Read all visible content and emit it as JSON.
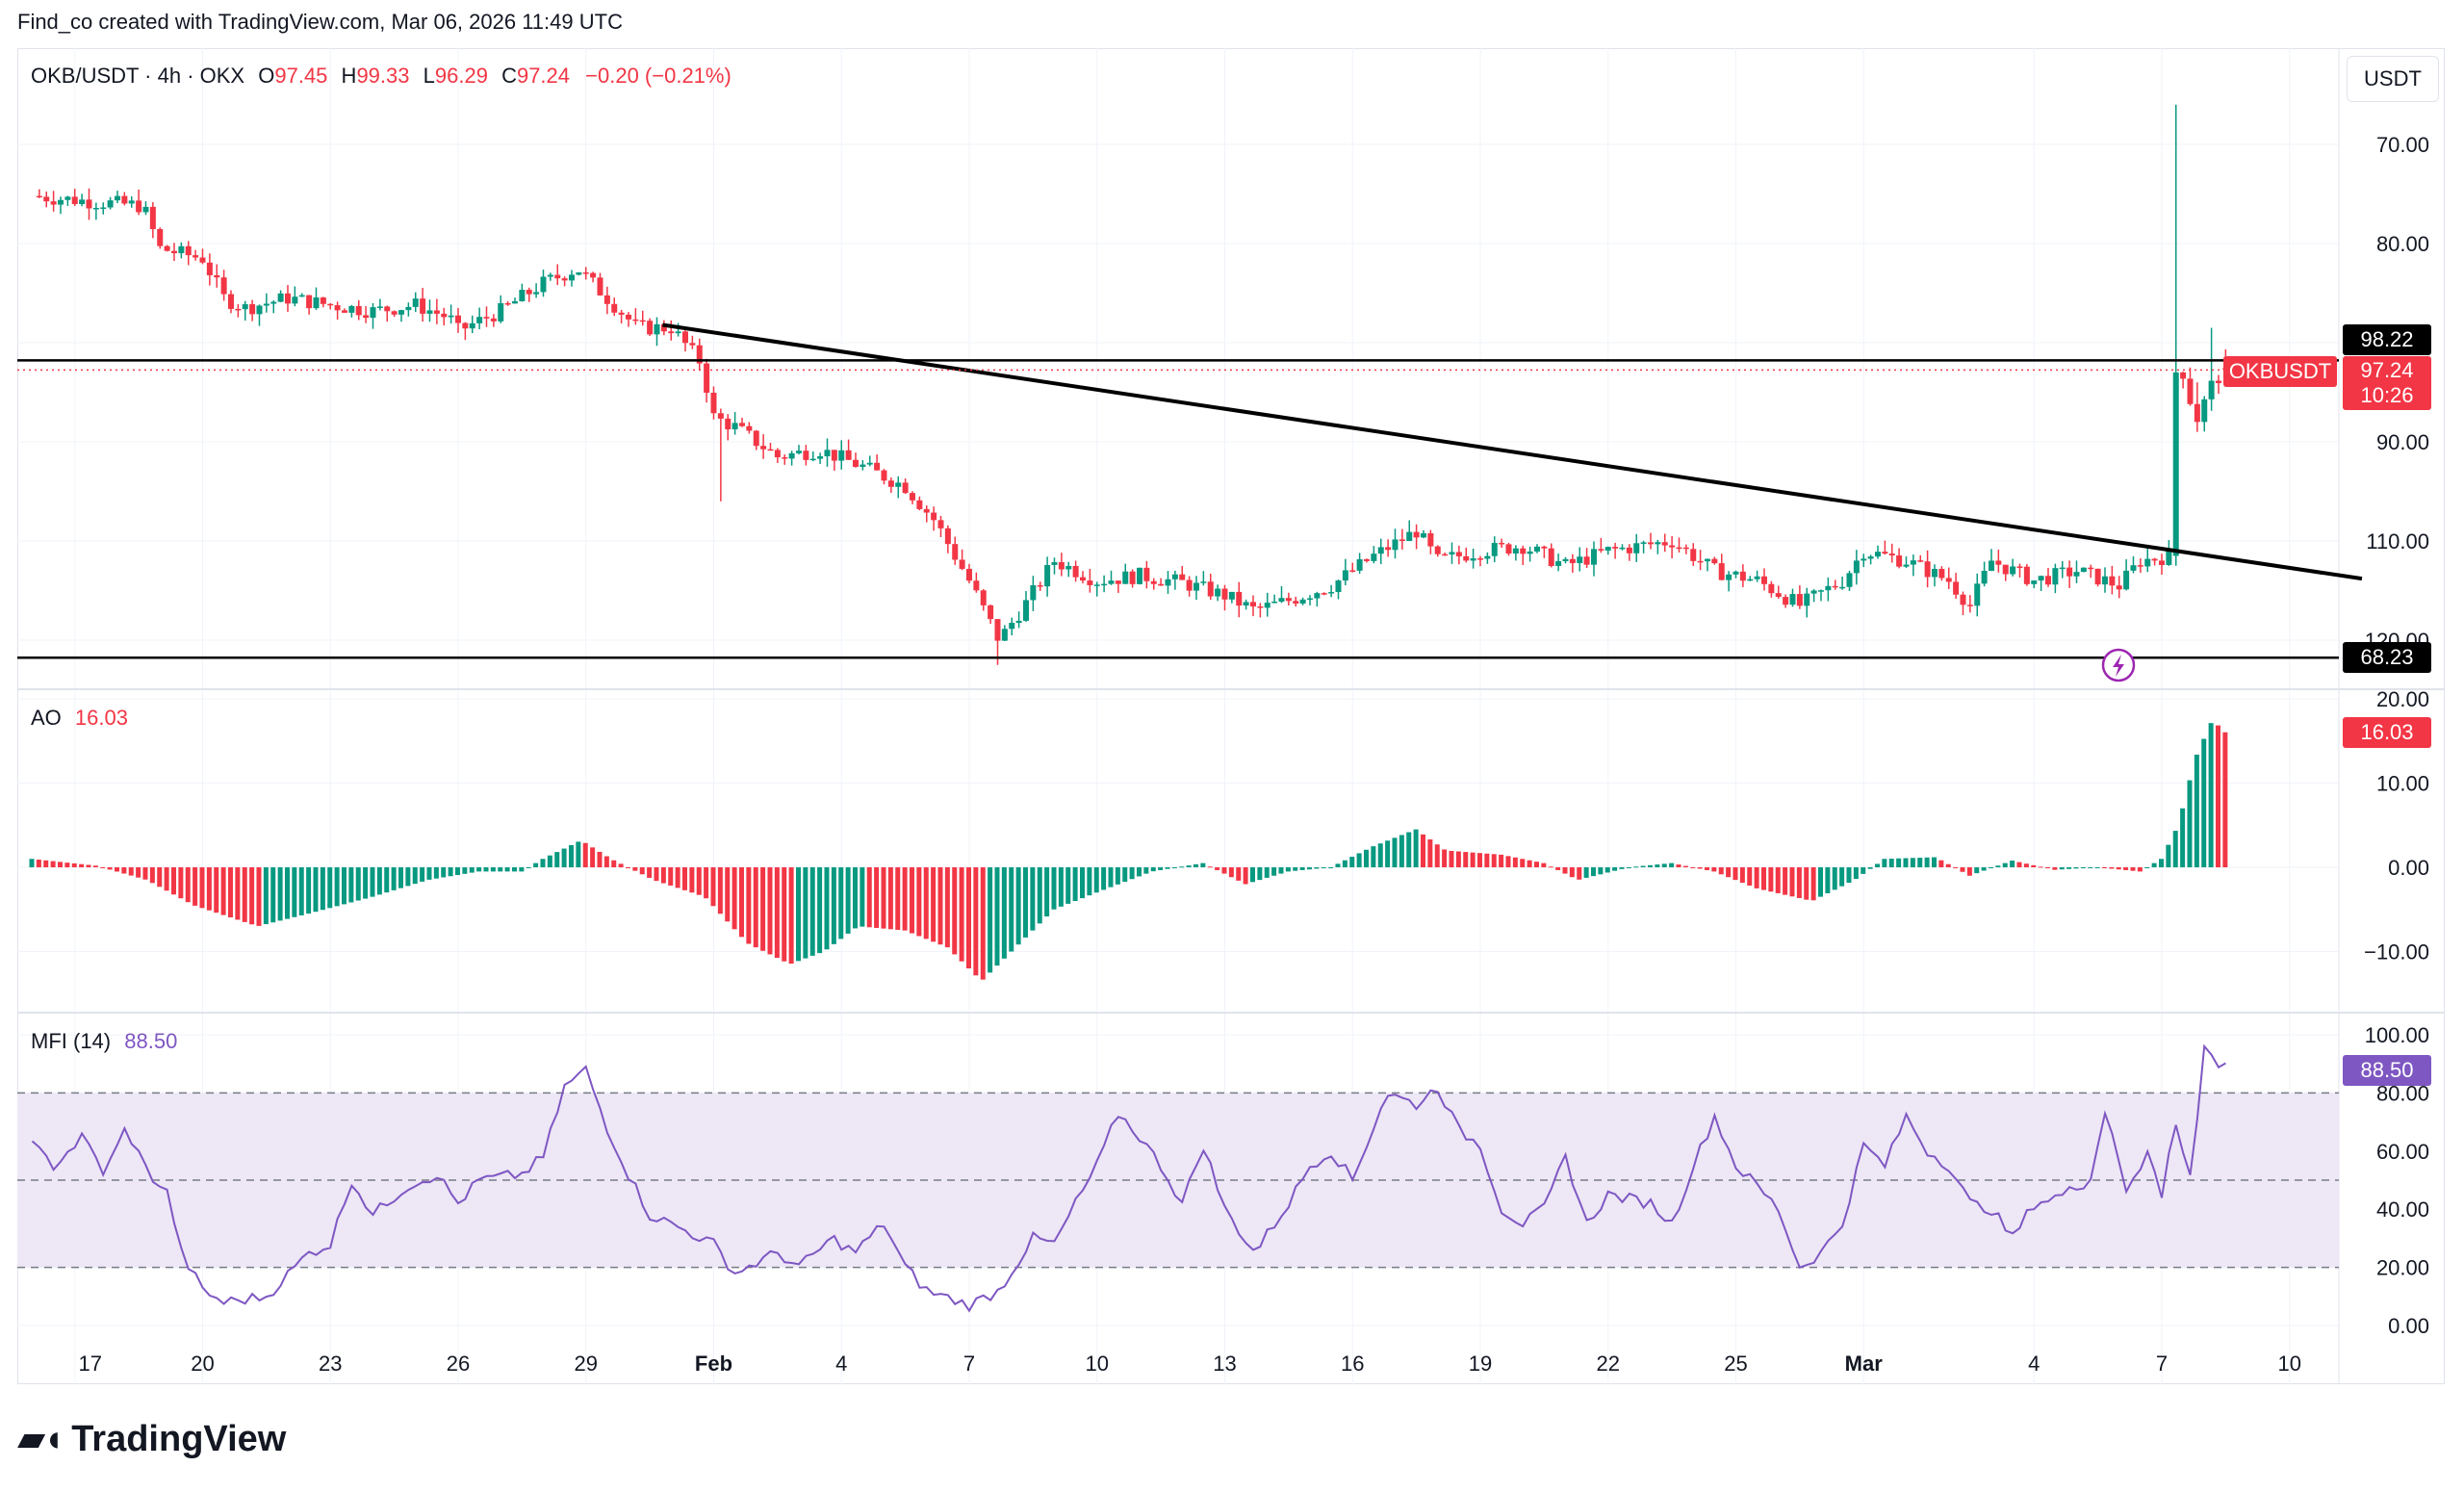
{
  "header": {
    "credit": "Find_co created with TradingView.com, Mar 06, 2026 11:49 UTC"
  },
  "symbol_legend": {
    "symbol": "OKB/USDT · 4h · OKX",
    "o_label": "O",
    "o_value": "97.45",
    "h_label": "H",
    "h_value": "99.33",
    "l_label": "L",
    "l_value": "96.29",
    "c_label": "C",
    "c_value": "97.24",
    "change": "−0.20 (−0.21%)"
  },
  "currency_button": "USDT",
  "price_tags": {
    "upper_line": "98.22",
    "symbol_label": "OKBUSDT",
    "last_price": "97.24",
    "countdown": "10:26",
    "support_line": "68.23"
  },
  "ao_legend": {
    "name": "AO",
    "value": "16.03"
  },
  "mfi_legend": {
    "name": "MFI (14)",
    "value": "88.50"
  },
  "footer": {
    "brand": "TradingView"
  },
  "colors": {
    "up": "#089981",
    "down": "#f23645",
    "mfi_line": "#7e57c2",
    "mfi_band": "#ede7f6",
    "trendline": "#000000"
  },
  "chart_data": [
    {
      "type": "candlestick",
      "title": "OKB/USDT · 4h · OKX",
      "y_axis_ticks": [
        "70.00",
        "80.00",
        "90.00",
        "110.00",
        "120.00"
      ],
      "x_axis_ticks": [
        "17",
        "20",
        "23",
        "26",
        "29",
        "Feb",
        "4",
        "7",
        "10",
        "13",
        "16",
        "19",
        "22",
        "25",
        "Mar",
        "4",
        "7",
        "10"
      ],
      "ylim": [
        67,
        127
      ],
      "close_path": [
        {
          "day": 16.0,
          "close": 114.8
        },
        {
          "day": 17.5,
          "close": 114.2
        },
        {
          "day": 18.6,
          "close": 113.8
        },
        {
          "day": 19.0,
          "close": 109.5
        },
        {
          "day": 20.0,
          "close": 108.5
        },
        {
          "day": 20.5,
          "close": 104.5
        },
        {
          "day": 21.0,
          "close": 103.5
        },
        {
          "day": 22.0,
          "close": 104.5
        },
        {
          "day": 23.0,
          "close": 103.8
        },
        {
          "day": 24.0,
          "close": 103.2
        },
        {
          "day": 25.0,
          "close": 103.8
        },
        {
          "day": 25.8,
          "close": 102.5
        },
        {
          "day": 26.0,
          "close": 101.2
        },
        {
          "day": 27.0,
          "close": 103.2
        },
        {
          "day": 28.0,
          "close": 106.0
        },
        {
          "day": 28.8,
          "close": 107.5
        },
        {
          "day": 29.5,
          "close": 104.5
        },
        {
          "day": 30.2,
          "close": 101.5
        },
        {
          "day": 31.0,
          "close": 101.5
        },
        {
          "day": 31.7,
          "close": 98.0
        },
        {
          "day": 32.0,
          "close": 92.5
        },
        {
          "day": 32.5,
          "close": 91.5
        },
        {
          "day": 33.5,
          "close": 88.5
        },
        {
          "day": 34.5,
          "close": 89.2
        },
        {
          "day": 35.5,
          "close": 87.5
        },
        {
          "day": 36.5,
          "close": 85.5
        },
        {
          "day": 37.2,
          "close": 82.0
        },
        {
          "day": 38.0,
          "close": 76.0
        },
        {
          "day": 38.7,
          "close": 70.0
        },
        {
          "day": 39.3,
          "close": 73.5
        },
        {
          "day": 40.0,
          "close": 78.0
        },
        {
          "day": 41.0,
          "close": 76.0
        },
        {
          "day": 42.0,
          "close": 76.5
        },
        {
          "day": 43.0,
          "close": 75.8
        },
        {
          "day": 44.0,
          "close": 74.5
        },
        {
          "day": 44.7,
          "close": 73.0
        },
        {
          "day": 45.5,
          "close": 74.0
        },
        {
          "day": 46.5,
          "close": 75.5
        },
        {
          "day": 47.5,
          "close": 78.5
        },
        {
          "day": 48.5,
          "close": 81.0
        },
        {
          "day": 49.0,
          "close": 78.0
        },
        {
          "day": 50.0,
          "close": 79.0
        },
        {
          "day": 51.0,
          "close": 79.5
        },
        {
          "day": 52.0,
          "close": 77.5
        },
        {
          "day": 53.0,
          "close": 79.0
        },
        {
          "day": 54.5,
          "close": 80.0
        },
        {
          "day": 55.5,
          "close": 77.0
        },
        {
          "day": 56.5,
          "close": 76.0
        },
        {
          "day": 57.5,
          "close": 73.5
        },
        {
          "day": 58.5,
          "close": 76.0
        },
        {
          "day": 59.0,
          "close": 79.0
        },
        {
          "day": 60.0,
          "close": 78.0
        },
        {
          "day": 61.0,
          "close": 76.0
        },
        {
          "day": 61.5,
          "close": 73.5
        },
        {
          "day": 62.0,
          "close": 78.0
        },
        {
          "day": 63.0,
          "close": 76.0
        },
        {
          "day": 64.0,
          "close": 77.0
        },
        {
          "day": 65.0,
          "close": 75.5
        },
        {
          "day": 65.5,
          "close": 78.0
        },
        {
          "day": 66.2,
          "close": 78.5
        },
        {
          "day": 66.5,
          "close": 97.0
        },
        {
          "day": 66.8,
          "close": 92.0
        },
        {
          "day": 67.2,
          "close": 96.0
        },
        {
          "day": 67.5,
          "close": 97.24
        }
      ],
      "lines": [
        {
          "name": "",
          "kind": "horizontal",
          "value": 98.22
        },
        {
          "name": "",
          "kind": "horizontal",
          "value": 68.23
        },
        {
          "name": "",
          "kind": "trendline",
          "from": {
            "day": 30.8,
            "price": 101.8
          },
          "to": {
            "day": 70.7,
            "price": 76.2
          }
        }
      ],
      "last": {
        "open": 97.45,
        "high": 99.33,
        "low": 96.29,
        "close": 97.24
      }
    },
    {
      "type": "bar",
      "title": "AO",
      "y_axis_ticks": [
        "20.00",
        "10.00",
        "0.00",
        "−10.00"
      ],
      "ylim": [
        -15,
        22
      ],
      "profile": [
        {
          "day": 16.0,
          "value": 1.0
        },
        {
          "day": 17.5,
          "value": 0.2
        },
        {
          "day": 18.7,
          "value": -1.5
        },
        {
          "day": 19.8,
          "value": -4.5
        },
        {
          "day": 21.3,
          "value": -7.0
        },
        {
          "day": 22.5,
          "value": -5.5
        },
        {
          "day": 24.0,
          "value": -3.5
        },
        {
          "day": 25.3,
          "value": -1.5
        },
        {
          "day": 26.5,
          "value": -0.5
        },
        {
          "day": 27.5,
          "value": -0.5
        },
        {
          "day": 28.0,
          "value": 1.0
        },
        {
          "day": 28.9,
          "value": 3.2
        },
        {
          "day": 29.6,
          "value": 1.0
        },
        {
          "day": 30.6,
          "value": -1.5
        },
        {
          "day": 31.8,
          "value": -3.5
        },
        {
          "day": 32.8,
          "value": -9.0
        },
        {
          "day": 33.8,
          "value": -11.5
        },
        {
          "day": 34.6,
          "value": -10.0
        },
        {
          "day": 35.4,
          "value": -7.0
        },
        {
          "day": 36.5,
          "value": -7.5
        },
        {
          "day": 37.5,
          "value": -9.5
        },
        {
          "day": 38.3,
          "value": -13.5
        },
        {
          "day": 39.0,
          "value": -10.0
        },
        {
          "day": 40.0,
          "value": -5.0
        },
        {
          "day": 41.0,
          "value": -3.0
        },
        {
          "day": 42.3,
          "value": -0.5
        },
        {
          "day": 43.5,
          "value": 0.5
        },
        {
          "day": 44.5,
          "value": -2.0
        },
        {
          "day": 45.5,
          "value": -0.5
        },
        {
          "day": 46.5,
          "value": 0.0
        },
        {
          "day": 47.5,
          "value": 2.5
        },
        {
          "day": 48.5,
          "value": 4.5
        },
        {
          "day": 49.2,
          "value": 2.0
        },
        {
          "day": 50.5,
          "value": 1.5
        },
        {
          "day": 51.5,
          "value": 0.5
        },
        {
          "day": 52.3,
          "value": -1.5
        },
        {
          "day": 53.5,
          "value": 0.0
        },
        {
          "day": 54.5,
          "value": 0.5
        },
        {
          "day": 55.5,
          "value": -0.5
        },
        {
          "day": 56.5,
          "value": -2.5
        },
        {
          "day": 57.8,
          "value": -4.0
        },
        {
          "day": 58.8,
          "value": -1.5
        },
        {
          "day": 59.5,
          "value": 1.0
        },
        {
          "day": 60.7,
          "value": 1.2
        },
        {
          "day": 61.5,
          "value": -1.0
        },
        {
          "day": 62.5,
          "value": 0.8
        },
        {
          "day": 63.5,
          "value": -0.3
        },
        {
          "day": 64.5,
          "value": 0.0
        },
        {
          "day": 65.5,
          "value": -0.5
        },
        {
          "day": 66.0,
          "value": 1.0
        },
        {
          "day": 66.4,
          "value": 5.0
        },
        {
          "day": 66.8,
          "value": 13.0
        },
        {
          "day": 67.2,
          "value": 17.5
        },
        {
          "day": 67.5,
          "value": 16.03
        }
      ]
    },
    {
      "type": "line",
      "title": "MFI (14)",
      "y_axis_ticks": [
        "100.00",
        "80.00",
        "60.00",
        "40.00",
        "20.00",
        "0.00"
      ],
      "ylim": [
        0,
        100
      ],
      "bands": [
        80,
        50,
        20
      ],
      "series": [
        {
          "name": "",
          "points": [
            {
              "day": 16.0,
              "value": 62
            },
            {
              "day": 16.5,
              "value": 55
            },
            {
              "day": 17.2,
              "value": 65
            },
            {
              "day": 17.7,
              "value": 52
            },
            {
              "day": 18.2,
              "value": 68
            },
            {
              "day": 18.7,
              "value": 53
            },
            {
              "day": 19.2,
              "value": 45
            },
            {
              "day": 19.5,
              "value": 25
            },
            {
              "day": 20.0,
              "value": 12
            },
            {
              "day": 20.5,
              "value": 8
            },
            {
              "day": 21.5,
              "value": 10
            },
            {
              "day": 22.5,
              "value": 25
            },
            {
              "day": 23.0,
              "value": 28
            },
            {
              "day": 23.5,
              "value": 50
            },
            {
              "day": 24.0,
              "value": 38
            },
            {
              "day": 24.8,
              "value": 48
            },
            {
              "day": 25.5,
              "value": 52
            },
            {
              "day": 26.0,
              "value": 42
            },
            {
              "day": 26.5,
              "value": 50
            },
            {
              "day": 27.5,
              "value": 52
            },
            {
              "day": 28.0,
              "value": 58
            },
            {
              "day": 28.5,
              "value": 82
            },
            {
              "day": 29.0,
              "value": 88
            },
            {
              "day": 29.5,
              "value": 68
            },
            {
              "day": 30.0,
              "value": 52
            },
            {
              "day": 30.5,
              "value": 38
            },
            {
              "day": 31.0,
              "value": 35
            },
            {
              "day": 32.0,
              "value": 28
            },
            {
              "day": 32.5,
              "value": 18
            },
            {
              "day": 33.5,
              "value": 25
            },
            {
              "day": 34.0,
              "value": 20
            },
            {
              "day": 34.8,
              "value": 30
            },
            {
              "day": 35.3,
              "value": 25
            },
            {
              "day": 36.0,
              "value": 35
            },
            {
              "day": 36.5,
              "value": 20
            },
            {
              "day": 37.0,
              "value": 12
            },
            {
              "day": 38.0,
              "value": 7
            },
            {
              "day": 38.7,
              "value": 12
            },
            {
              "day": 39.5,
              "value": 30
            },
            {
              "day": 40.0,
              "value": 28
            },
            {
              "day": 40.5,
              "value": 42
            },
            {
              "day": 41.0,
              "value": 55
            },
            {
              "day": 41.5,
              "value": 73
            },
            {
              "day": 42.0,
              "value": 65
            },
            {
              "day": 42.5,
              "value": 55
            },
            {
              "day": 43.0,
              "value": 42
            },
            {
              "day": 43.5,
              "value": 62
            },
            {
              "day": 44.0,
              "value": 40
            },
            {
              "day": 44.7,
              "value": 25
            },
            {
              "day": 45.5,
              "value": 42
            },
            {
              "day": 46.0,
              "value": 55
            },
            {
              "day": 46.5,
              "value": 60
            },
            {
              "day": 47.0,
              "value": 50
            },
            {
              "day": 47.8,
              "value": 80
            },
            {
              "day": 48.5,
              "value": 76
            },
            {
              "day": 49.0,
              "value": 82
            },
            {
              "day": 49.5,
              "value": 67
            },
            {
              "day": 50.0,
              "value": 62
            },
            {
              "day": 50.5,
              "value": 40
            },
            {
              "day": 51.0,
              "value": 35
            },
            {
              "day": 51.5,
              "value": 40
            },
            {
              "day": 52.0,
              "value": 58
            },
            {
              "day": 52.5,
              "value": 35
            },
            {
              "day": 53.0,
              "value": 45
            },
            {
              "day": 54.0,
              "value": 42
            },
            {
              "day": 54.5,
              "value": 35
            },
            {
              "day": 55.0,
              "value": 55
            },
            {
              "day": 55.5,
              "value": 72
            },
            {
              "day": 56.0,
              "value": 55
            },
            {
              "day": 56.5,
              "value": 48
            },
            {
              "day": 57.0,
              "value": 40
            },
            {
              "day": 57.5,
              "value": 20
            },
            {
              "day": 58.0,
              "value": 25
            },
            {
              "day": 58.5,
              "value": 35
            },
            {
              "day": 59.0,
              "value": 62
            },
            {
              "day": 59.5,
              "value": 55
            },
            {
              "day": 60.0,
              "value": 72
            },
            {
              "day": 60.5,
              "value": 60
            },
            {
              "day": 61.0,
              "value": 55
            },
            {
              "day": 61.5,
              "value": 42
            },
            {
              "day": 62.0,
              "value": 40
            },
            {
              "day": 62.5,
              "value": 30
            },
            {
              "day": 63.0,
              "value": 42
            },
            {
              "day": 63.7,
              "value": 45
            },
            {
              "day": 64.3,
              "value": 50
            },
            {
              "day": 64.7,
              "value": 75
            },
            {
              "day": 65.2,
              "value": 45
            },
            {
              "day": 65.7,
              "value": 60
            },
            {
              "day": 66.0,
              "value": 45
            },
            {
              "day": 66.3,
              "value": 72
            },
            {
              "day": 66.7,
              "value": 50
            },
            {
              "day": 67.0,
              "value": 96
            },
            {
              "day": 67.3,
              "value": 90
            },
            {
              "day": 67.6,
              "value": 88.5
            }
          ]
        }
      ]
    }
  ]
}
